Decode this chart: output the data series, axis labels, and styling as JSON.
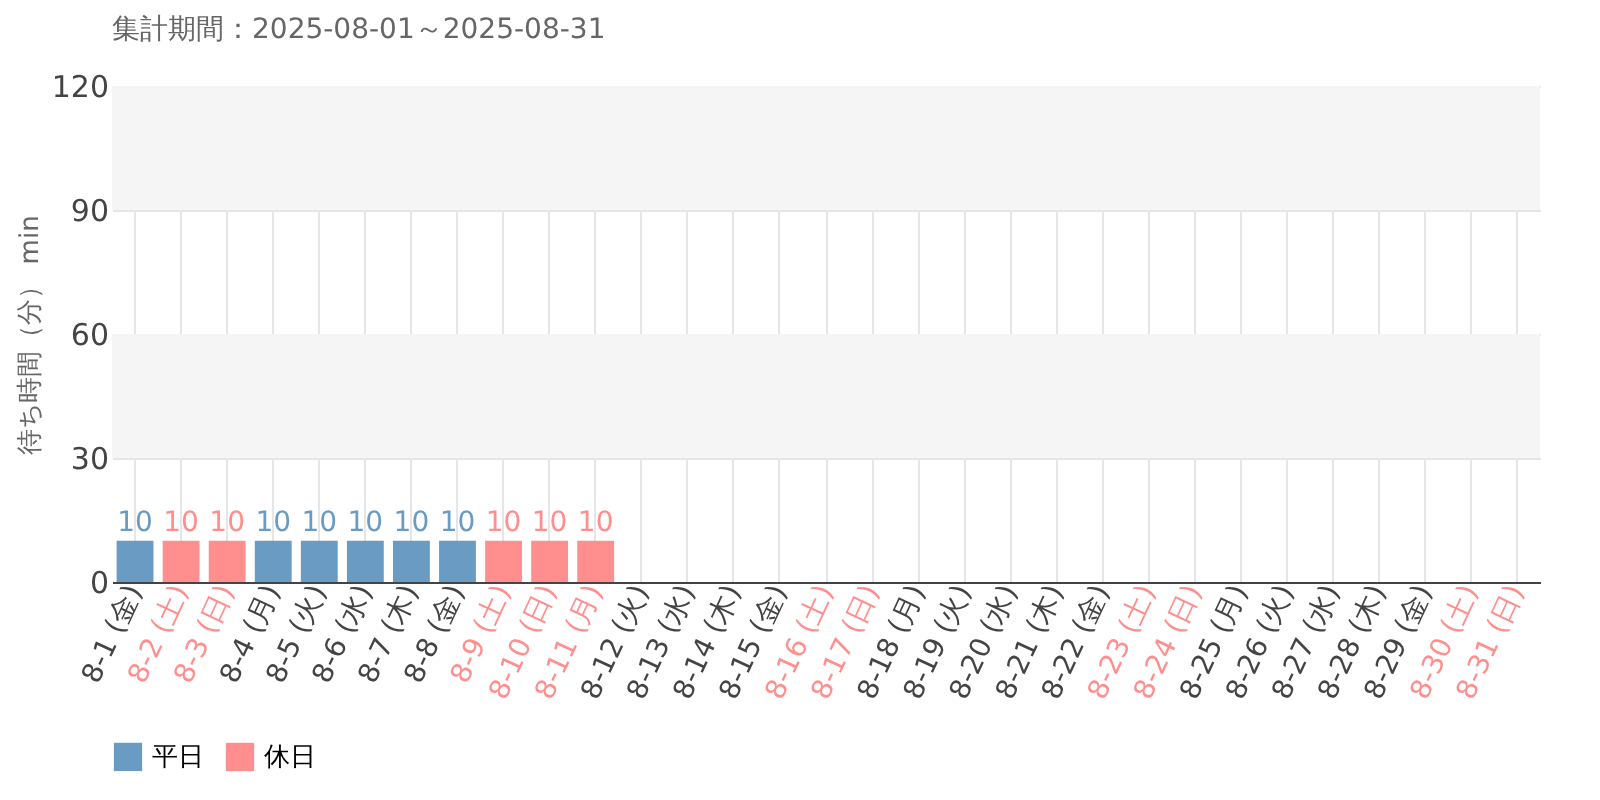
{
  "chart_data": {
    "type": "bar",
    "title": "集計期間：2025-08-01～2025-08-31",
    "ylabel": "待ち時間（分） min",
    "categories": [
      "8-1 (金)",
      "8-2 (土)",
      "8-3 (日)",
      "8-4 (月)",
      "8-5 (火)",
      "8-6 (水)",
      "8-7 (木)",
      "8-8 (金)",
      "8-9 (土)",
      "8-10 (日)",
      "8-11 (月)",
      "8-12 (火)",
      "8-13 (水)",
      "8-14 (木)",
      "8-15 (金)",
      "8-16 (土)",
      "8-17 (日)",
      "8-18 (月)",
      "8-19 (火)",
      "8-20 (水)",
      "8-21 (木)",
      "8-22 (金)",
      "8-23 (土)",
      "8-24 (日)",
      "8-25 (月)",
      "8-26 (火)",
      "8-27 (水)",
      "8-28 (木)",
      "8-29 (金)",
      "8-30 (土)",
      "8-31 (日)"
    ],
    "colors": [
      "#444444",
      "#ff8f8f",
      "#ff8f8f",
      "#444444",
      "#444444",
      "#444444",
      "#444444",
      "#444444",
      "#ff8f8f",
      "#ff8f8f",
      "#ff8f8f",
      "#444444",
      "#444444",
      "#444444",
      "#444444",
      "#ff8f8f",
      "#ff8f8f",
      "#444444",
      "#444444",
      "#444444",
      "#444444",
      "#444444",
      "#ff8f8f",
      "#ff8f8f",
      "#444444",
      "#444444",
      "#444444",
      "#444444",
      "#444444",
      "#ff8f8f",
      "#ff8f8f"
    ],
    "series": [
      {
        "name": "平日",
        "color": "#6a9bc3",
        "values": [
          10,
          null,
          null,
          10,
          10,
          10,
          10,
          10,
          null,
          null,
          null,
          null,
          null,
          null,
          null,
          null,
          null,
          null,
          null,
          null,
          null,
          null,
          null,
          null,
          null,
          null,
          null,
          null,
          null,
          null,
          null
        ]
      },
      {
        "name": "休日",
        "color": "#ff8f8f",
        "values": [
          null,
          10,
          10,
          null,
          null,
          null,
          null,
          null,
          10,
          10,
          10,
          null,
          null,
          null,
          null,
          null,
          null,
          null,
          null,
          null,
          null,
          null,
          null,
          null,
          null,
          null,
          null,
          null,
          null,
          null,
          null
        ]
      }
    ],
    "ylim": [
      0,
      120
    ],
    "yticks": [
      0,
      30,
      60,
      90,
      120
    ],
    "bands": [
      {
        "axis": "y",
        "from": 30,
        "to": 60,
        "color": "#f5f5f5"
      },
      {
        "axis": "y",
        "from": 90,
        "to": 120,
        "color": "#f5f5f5"
      }
    ],
    "grid": true,
    "data_labels": true,
    "legend": "bottom left"
  }
}
